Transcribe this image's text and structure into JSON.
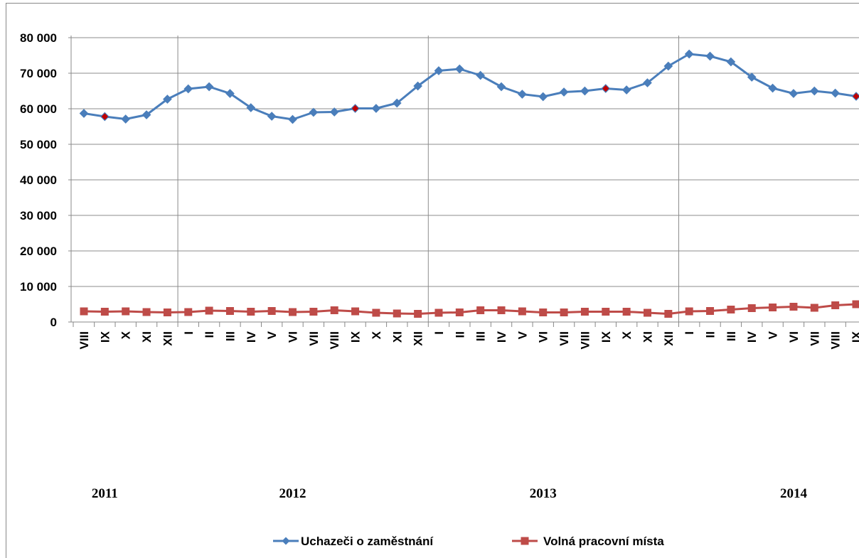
{
  "chart_data": {
    "type": "line",
    "y_ticks": [
      "80 000",
      "70 000",
      "60 000",
      "50 000",
      "40 000",
      "30 000",
      "20 000",
      "10 000",
      "0"
    ],
    "ylim": [
      0,
      80000
    ],
    "grid": "horizontal and year separators",
    "categories": [
      "VIII",
      "IX",
      "X",
      "XI",
      "XII",
      "I",
      "II",
      "III",
      "IV",
      "V",
      "VI",
      "VII",
      "VIII",
      "IX",
      "X",
      "XI",
      "XII",
      "I",
      "II",
      "III",
      "IV",
      "V",
      "VI",
      "VII",
      "VIII",
      "IX",
      "X",
      "XI",
      "XII",
      "I",
      "II",
      "III",
      "IV",
      "V",
      "VI",
      "VII",
      "VIII",
      "IX"
    ],
    "years": [
      {
        "label": "2011",
        "index": 1
      },
      {
        "label": "2012",
        "index": 10
      },
      {
        "label": "2013",
        "index": 22
      },
      {
        "label": "2014",
        "index": 34
      }
    ],
    "year_boundaries": [
      5,
      17,
      29
    ],
    "series": [
      {
        "name": "Uchazeči o zaměstnání",
        "color": "#4a7ebb",
        "marker": "diamond",
        "values": [
          58700,
          57800,
          57100,
          58300,
          62700,
          65600,
          66200,
          64300,
          60300,
          57900,
          57000,
          59000,
          59100,
          60100,
          60100,
          61600,
          66400,
          70700,
          71200,
          69400,
          66200,
          64100,
          63400,
          64700,
          65000,
          65700,
          65300,
          67300,
          72000,
          75400,
          74800,
          73200,
          68900,
          65800,
          64300,
          65000,
          64400,
          63500
        ],
        "highlighted_indices": [
          1,
          13,
          25,
          37
        ],
        "highlight_color": "#c00000"
      },
      {
        "name": "Volná pracovní místa",
        "color": "#be4b48",
        "marker": "square",
        "values": [
          3000,
          2900,
          3000,
          2800,
          2700,
          2800,
          3200,
          3100,
          2900,
          3100,
          2800,
          2900,
          3300,
          3000,
          2600,
          2400,
          2300,
          2600,
          2700,
          3300,
          3300,
          3000,
          2700,
          2700,
          2900,
          2900,
          2900,
          2600,
          2300,
          3000,
          3100,
          3500,
          3900,
          4100,
          4300,
          4000,
          4700,
          5000
        ]
      }
    ],
    "legend": {
      "position": "bottom-center"
    }
  }
}
